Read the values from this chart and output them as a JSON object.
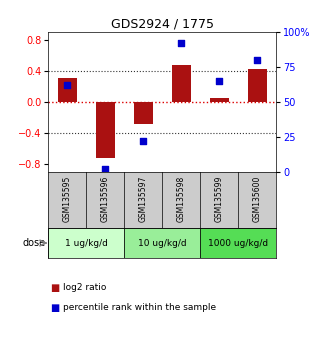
{
  "title": "GDS2924 / 1775",
  "samples": [
    "GSM135595",
    "GSM135596",
    "GSM135597",
    "GSM135598",
    "GSM135599",
    "GSM135600"
  ],
  "log2_ratio": [
    0.3,
    -0.72,
    -0.28,
    0.47,
    0.05,
    0.42
  ],
  "percentile_rank": [
    62,
    2,
    22,
    92,
    65,
    80
  ],
  "groups": [
    {
      "label": "1 ug/kg/d",
      "samples": [
        0,
        1
      ],
      "color": "#ccffcc"
    },
    {
      "label": "10 ug/kg/d",
      "samples": [
        2,
        3
      ],
      "color": "#99ee99"
    },
    {
      "label": "1000 ug/kg/d",
      "samples": [
        4,
        5
      ],
      "color": "#55dd55"
    }
  ],
  "group_row_label": "dose",
  "ylim_left": [
    -0.9,
    0.9
  ],
  "ylim_right": [
    0,
    100
  ],
  "yticks_left": [
    -0.8,
    -0.4,
    0.0,
    0.4,
    0.8
  ],
  "yticks_right": [
    0,
    25,
    50,
    75,
    100
  ],
  "yticklabels_right": [
    "0",
    "25",
    "50",
    "75",
    "100%"
  ],
  "bar_color": "#aa1111",
  "dot_color": "#0000cc",
  "bar_width": 0.5,
  "dot_size": 25,
  "hline_zero_color": "#dd0000",
  "hline_dotted_color": "#333333",
  "legend_bar_label": "log2 ratio",
  "legend_dot_label": "percentile rank within the sample",
  "sample_box_color": "#cccccc",
  "figsize": [
    3.21,
    3.54
  ],
  "dpi": 100
}
